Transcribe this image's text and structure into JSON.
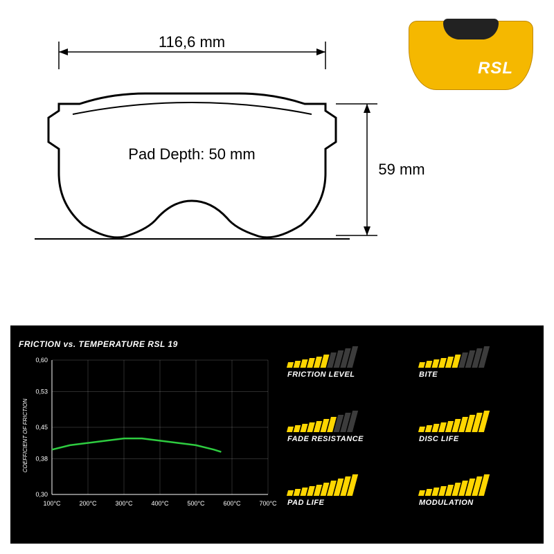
{
  "diagram": {
    "width_label": "116,6 mm",
    "height_label": "59 mm",
    "pad_depth_label": "Pad Depth: 50 mm",
    "stroke": "#000000",
    "stroke_width": 2
  },
  "product": {
    "brand": "RSL",
    "body_color": "#f5b800",
    "slot_color": "#1a1a1a",
    "text_color": "#ffffff"
  },
  "lower_panel": {
    "background": "#000000",
    "chart": {
      "title": "FRICTION vs. TEMPERATURE RSL 19",
      "y_axis_label": "COEFFICIENT OF FRICTION",
      "y_ticks": [
        "0,30",
        "0,38",
        "0,45",
        "0,53",
        "0,60"
      ],
      "y_min": 0.3,
      "y_max": 0.6,
      "x_ticks": [
        "100°C",
        "200°C",
        "300°C",
        "400°C",
        "500°C",
        "600°C",
        "700°C"
      ],
      "x_min": 100,
      "x_max": 700,
      "line_color": "#2ecc40",
      "grid_color": "#ffffff",
      "text_color": "#ffffff",
      "series": [
        {
          "x": 100,
          "y": 0.4
        },
        {
          "x": 150,
          "y": 0.41
        },
        {
          "x": 200,
          "y": 0.415
        },
        {
          "x": 250,
          "y": 0.42
        },
        {
          "x": 300,
          "y": 0.425
        },
        {
          "x": 350,
          "y": 0.425
        },
        {
          "x": 400,
          "y": 0.42
        },
        {
          "x": 450,
          "y": 0.415
        },
        {
          "x": 500,
          "y": 0.41
        },
        {
          "x": 550,
          "y": 0.4
        },
        {
          "x": 570,
          "y": 0.395
        }
      ]
    },
    "ratings": {
      "bar_count": 10,
      "bar_heights": [
        8,
        10,
        12,
        14,
        16,
        19,
        22,
        25,
        28,
        31
      ],
      "filled_color": "#ffd600",
      "empty_color": "#3c3c3c",
      "label_color": "#ffffff",
      "items": [
        {
          "label": "FRICTION LEVEL",
          "value": 6
        },
        {
          "label": "BITE",
          "value": 6
        },
        {
          "label": "FADE RESISTANCE",
          "value": 7
        },
        {
          "label": "DISC LIFE",
          "value": 10
        },
        {
          "label": "PAD LIFE",
          "value": 10
        },
        {
          "label": "MODULATION",
          "value": 10
        }
      ]
    }
  }
}
